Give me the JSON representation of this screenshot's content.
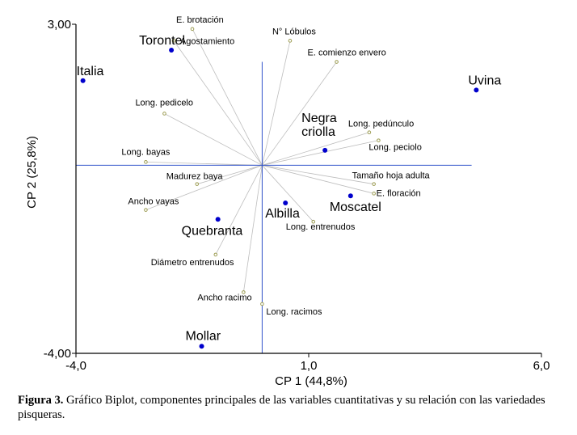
{
  "chart_data": {
    "type": "scatter",
    "subtype": "biplot",
    "xlabel": "CP 1 (44,8%)",
    "ylabel": "CP 2 (25,8%)",
    "xlim": [
      -4.0,
      6.0
    ],
    "ylim": [
      -4.0,
      3.0
    ],
    "xticks": [
      "-4,0",
      "1,0",
      "6,0"
    ],
    "yticks": [
      "3,00",
      "-4,00"
    ],
    "grid": false,
    "colors": {
      "observation": "#0000cc",
      "variable_point": "#9c9c52",
      "vector": "#bdbdbd",
      "origin_axes": "#3355cc",
      "frame": "#000000"
    },
    "variables": [
      {
        "name": "E. brotación",
        "x": -1.5,
        "y": 2.9
      },
      {
        "name": "Agostamiento",
        "x": -1.9,
        "y": 2.65
      },
      {
        "name": "N° Lóbulos",
        "x": 0.6,
        "y": 2.65
      },
      {
        "name": "E. comienzo envero",
        "x": 1.6,
        "y": 2.2
      },
      {
        "name": "Long. pedicelo",
        "x": -2.1,
        "y": 1.1
      },
      {
        "name": "Long. pedúnculo",
        "x": 2.3,
        "y": 0.7
      },
      {
        "name": "Long. peciolo",
        "x": 2.5,
        "y": 0.53
      },
      {
        "name": "Long. bayas",
        "x": -2.5,
        "y": 0.07
      },
      {
        "name": "Madurez baya",
        "x": -1.4,
        "y": -0.4
      },
      {
        "name": "Tamaño hoja adulta",
        "x": 2.4,
        "y": -0.4
      },
      {
        "name": "E. floración",
        "x": 2.4,
        "y": -0.6
      },
      {
        "name": "Ancho vayas",
        "x": -2.5,
        "y": -0.95
      },
      {
        "name": "Long. entrenudos",
        "x": 1.1,
        "y": -1.2
      },
      {
        "name": "Diámetro entrenudos",
        "x": -1.0,
        "y": -1.9
      },
      {
        "name": "Ancho racimo",
        "x": -0.4,
        "y": -2.7
      },
      {
        "name": "Long. racimos",
        "x": 0.0,
        "y": -2.95
      }
    ],
    "observations": [
      {
        "name": "Italia",
        "x": -3.85,
        "y": 1.8
      },
      {
        "name": "Torontel",
        "x": -1.95,
        "y": 2.45
      },
      {
        "name": "Uvina",
        "x": 4.6,
        "y": 1.6
      },
      {
        "name": "Negra criolla",
        "x": 1.35,
        "y": 0.32
      },
      {
        "name": "Moscatel",
        "x": 1.9,
        "y": -0.65
      },
      {
        "name": "Albilla",
        "x": 0.5,
        "y": -0.8
      },
      {
        "name": "Quebranta",
        "x": -0.95,
        "y": -1.15
      },
      {
        "name": "Mollar",
        "x": -1.3,
        "y": -3.85
      }
    ]
  },
  "caption": {
    "label": "Figura 3.",
    "text": " Gráfico Biplot, componentes principales de las variables cuantitativas y su relación con las variedades pisqueras."
  }
}
